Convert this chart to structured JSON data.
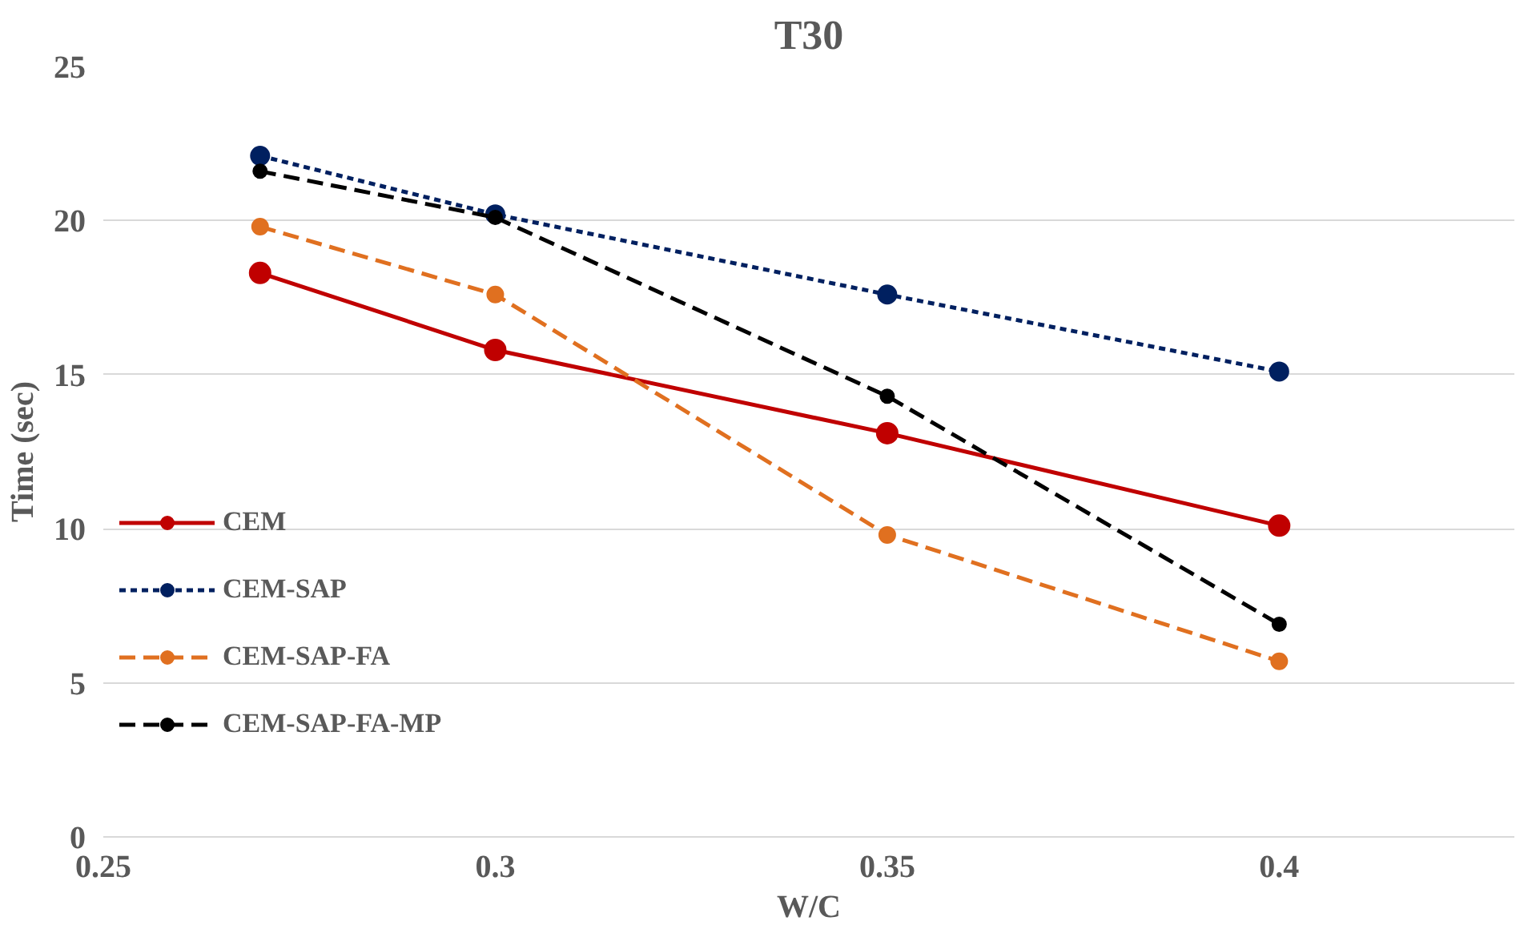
{
  "chart_data": {
    "type": "line",
    "title": "T30",
    "xlabel": "W/C",
    "ylabel": "Time (sec)",
    "x": [
      0.27,
      0.3,
      0.35,
      0.4
    ],
    "xlim": [
      0.25,
      0.43
    ],
    "xticks": [
      0.25,
      0.3,
      0.35,
      0.4
    ],
    "ylim": [
      0,
      25
    ],
    "yticks": [
      0,
      5,
      10,
      15,
      20,
      25
    ],
    "grid": "y",
    "legend": "left",
    "marker": "circle",
    "series": [
      {
        "name": "CEM",
        "color": "#c00000",
        "line_style": "solid",
        "values": [
          18.3,
          15.8,
          13.1,
          10.1
        ]
      },
      {
        "name": "CEM-SAP",
        "color": "#002060",
        "line_style": "dotted",
        "values": [
          22.1,
          20.2,
          17.6,
          15.1
        ]
      },
      {
        "name": "CEM-SAP-FA",
        "color": "#e07020",
        "line_style": "dashed",
        "values": [
          19.8,
          17.6,
          9.8,
          5.7
        ]
      },
      {
        "name": "CEM-SAP-FA-MP",
        "color": "#000000",
        "line_style": "dashed",
        "values": [
          21.6,
          20.1,
          14.3,
          6.9
        ]
      }
    ]
  }
}
